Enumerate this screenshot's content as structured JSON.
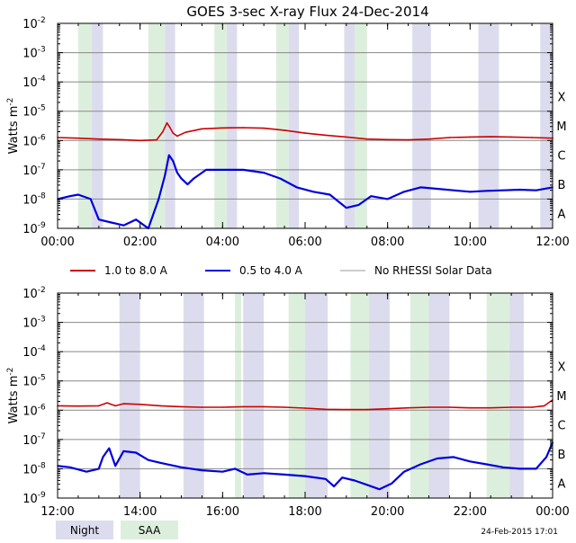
{
  "title": "GOES 3-sec X-ray Flux   24-Dec-2014",
  "ylabel": "Watts m",
  "ylabel_exp": "-2",
  "timestamp": "24-Feb-2015 17:01",
  "legend": {
    "long": "1.0 to 8.0 A",
    "short": "0.5 to 4.0 A",
    "nodata": "No RHESSI Solar Data"
  },
  "shading_legend": {
    "night": "Night",
    "saa": "SAA"
  },
  "colors": {
    "long": "#cc0000",
    "short": "#0000dd",
    "nodata": "#999999",
    "night": "#dcdcee",
    "saa": "#dcefdc",
    "grid": "#888888"
  },
  "flare_classes": [
    "X",
    "M",
    "C",
    "B",
    "A"
  ],
  "chart_data": [
    {
      "type": "line",
      "y_scale": "log",
      "ylim": [
        1e-09,
        0.01
      ],
      "y_tick_exponents": [
        -2,
        -3,
        -4,
        -5,
        -6,
        -7,
        -8,
        -9
      ],
      "x_range_hours": [
        0,
        12
      ],
      "x_tick_labels": [
        "00:00",
        "02:00",
        "04:00",
        "06:00",
        "08:00",
        "10:00",
        "12:00"
      ],
      "grid": true,
      "night_hours": [
        [
          0.83,
          1.1
        ],
        [
          2.6,
          2.85
        ],
        [
          4.1,
          4.35
        ],
        [
          5.6,
          5.85
        ],
        [
          6.95,
          7.2
        ],
        [
          8.6,
          9.05
        ],
        [
          10.2,
          10.7
        ],
        [
          11.7,
          12.0
        ]
      ],
      "saa_hours": [
        [
          0.5,
          0.83
        ],
        [
          2.2,
          2.6
        ],
        [
          3.8,
          4.1
        ],
        [
          5.3,
          5.6
        ],
        [
          7.2,
          7.5
        ]
      ],
      "series": [
        {
          "name": "1.0 to 8.0 A",
          "x": [
            0,
            0.5,
            1.0,
            1.5,
            2.0,
            2.4,
            2.55,
            2.65,
            2.72,
            2.8,
            2.9,
            3.1,
            3.5,
            4.0,
            4.5,
            5.0,
            5.5,
            6.0,
            6.5,
            7.0,
            7.5,
            8.0,
            8.5,
            9.0,
            9.5,
            10.0,
            10.5,
            11.0,
            11.5,
            12.0
          ],
          "log10_y": [
            -5.9,
            -5.92,
            -5.95,
            -5.97,
            -6.0,
            -5.98,
            -5.7,
            -5.4,
            -5.55,
            -5.75,
            -5.85,
            -5.72,
            -5.6,
            -5.57,
            -5.56,
            -5.58,
            -5.65,
            -5.75,
            -5.82,
            -5.88,
            -5.95,
            -5.97,
            -5.98,
            -5.95,
            -5.9,
            -5.88,
            -5.87,
            -5.88,
            -5.9,
            -5.92
          ]
        },
        {
          "name": "0.5 to 4.0 A",
          "x": [
            0,
            0.3,
            0.5,
            0.8,
            1.0,
            1.3,
            1.6,
            1.9,
            2.2,
            2.45,
            2.6,
            2.7,
            2.8,
            2.9,
            3.0,
            3.15,
            3.3,
            3.6,
            4.0,
            4.5,
            5.0,
            5.4,
            5.8,
            6.2,
            6.6,
            7.0,
            7.3,
            7.6,
            8.0,
            8.4,
            8.8,
            9.2,
            9.6,
            10.0,
            10.4,
            10.8,
            11.2,
            11.6,
            12.0
          ],
          "log10_y": [
            -8.0,
            -7.9,
            -7.85,
            -8.0,
            -8.7,
            -8.8,
            -8.9,
            -8.7,
            -9.0,
            -8.0,
            -7.2,
            -6.5,
            -6.7,
            -7.1,
            -7.3,
            -7.5,
            -7.3,
            -7.0,
            -7.0,
            -7.0,
            -7.1,
            -7.3,
            -7.6,
            -7.75,
            -7.85,
            -8.3,
            -8.2,
            -7.9,
            -8.0,
            -7.75,
            -7.6,
            -7.65,
            -7.7,
            -7.75,
            -7.72,
            -7.7,
            -7.68,
            -7.7,
            -7.6
          ]
        }
      ]
    },
    {
      "type": "line",
      "y_scale": "log",
      "ylim": [
        1e-09,
        0.01
      ],
      "y_tick_exponents": [
        -2,
        -3,
        -4,
        -5,
        -6,
        -7,
        -8,
        -9
      ],
      "x_range_hours": [
        12,
        24
      ],
      "x_tick_labels": [
        "12:00",
        "14:00",
        "16:00",
        "18:00",
        "20:00",
        "22:00",
        "00:00"
      ],
      "grid": true,
      "night_hours": [
        [
          13.5,
          14.0
        ],
        [
          15.05,
          15.55
        ],
        [
          16.5,
          17.0
        ],
        [
          18.0,
          18.55
        ],
        [
          19.55,
          20.05
        ],
        [
          21.0,
          21.5
        ],
        [
          22.95,
          23.3
        ]
      ],
      "saa_hours": [
        [
          16.3,
          16.45
        ],
        [
          17.6,
          18.0
        ],
        [
          19.1,
          19.55
        ],
        [
          20.55,
          21.0
        ],
        [
          22.4,
          22.95
        ]
      ],
      "series": [
        {
          "name": "1.0 to 8.0 A",
          "x": [
            12.0,
            12.5,
            13.0,
            13.2,
            13.4,
            13.6,
            14.0,
            14.5,
            15.0,
            15.5,
            16.0,
            16.5,
            17.0,
            17.5,
            18.0,
            18.5,
            19.0,
            19.5,
            20.0,
            20.5,
            21.0,
            21.5,
            22.0,
            22.5,
            23.0,
            23.5,
            23.8,
            24.0
          ],
          "log10_y": [
            -5.85,
            -5.86,
            -5.85,
            -5.75,
            -5.85,
            -5.78,
            -5.8,
            -5.85,
            -5.88,
            -5.9,
            -5.9,
            -5.88,
            -5.88,
            -5.9,
            -5.93,
            -5.97,
            -5.98,
            -5.98,
            -5.95,
            -5.92,
            -5.9,
            -5.9,
            -5.92,
            -5.92,
            -5.9,
            -5.9,
            -5.85,
            -5.65
          ]
        },
        {
          "name": "0.5 to 4.0 A",
          "x": [
            12.0,
            12.3,
            12.7,
            13.0,
            13.1,
            13.25,
            13.4,
            13.6,
            13.9,
            14.2,
            14.5,
            15.0,
            15.5,
            16.0,
            16.3,
            16.6,
            17.0,
            17.5,
            18.0,
            18.5,
            18.7,
            18.9,
            19.2,
            19.5,
            19.8,
            20.1,
            20.4,
            20.8,
            21.2,
            21.6,
            22.0,
            22.4,
            22.8,
            23.2,
            23.6,
            23.85,
            24.0
          ],
          "log10_y": [
            -7.9,
            -7.95,
            -8.1,
            -8.0,
            -7.6,
            -7.3,
            -7.9,
            -7.4,
            -7.45,
            -7.7,
            -7.8,
            -7.95,
            -8.05,
            -8.1,
            -8.0,
            -8.2,
            -8.15,
            -8.2,
            -8.25,
            -8.35,
            -8.6,
            -8.3,
            -8.4,
            -8.55,
            -8.7,
            -8.5,
            -8.1,
            -7.85,
            -7.65,
            -7.6,
            -7.75,
            -7.85,
            -7.95,
            -8.0,
            -8.0,
            -7.6,
            -7.1
          ]
        }
      ]
    }
  ]
}
